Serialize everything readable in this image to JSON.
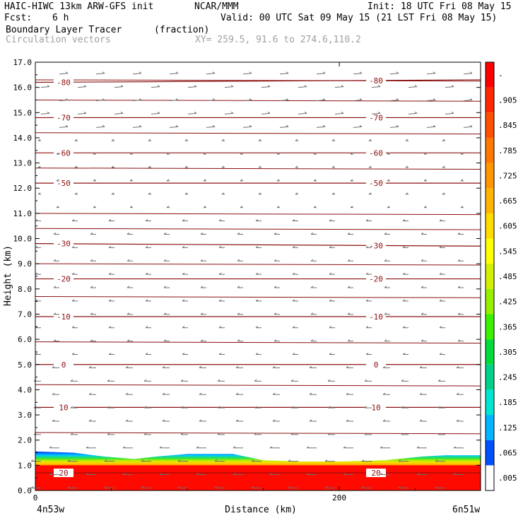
{
  "header": {
    "model": "HAIC-HIWC 13km ARW-GFS init",
    "org": "NCAR/MMM",
    "init": "Init: 18 UTC Fri 08 May 15",
    "fcst_label": "Fcst:",
    "fcst_value": "6 h",
    "valid": "Valid: 00 UTC Sat 09 May 15 (21 LST Fri 08 May 15)",
    "field1": "Boundary Layer Tracer",
    "field1_units": "(fraction)",
    "field2": "Circulation vectors",
    "xy": "XY= 259.5, 91.6 to 274.6,110.2"
  },
  "chart_data": {
    "type": "heatmap",
    "title": "",
    "xlabel": "Distance (km)",
    "ylabel": "Height (km)",
    "xlim": [
      0,
      293
    ],
    "ylim": [
      0,
      17
    ],
    "x_ticks": [
      0,
      200
    ],
    "y_ticks": [
      "0.0",
      "1.0",
      "2.0",
      "3.0",
      "4.0",
      "5.0",
      "6.0",
      "7.0",
      "8.0",
      "9.0",
      "10.0",
      "11.0",
      "12.0",
      "13.0",
      "14.0",
      "15.0",
      "16.0",
      "17.0"
    ],
    "x_endpoints": {
      "left": "4n53w",
      "right": "6n51w"
    },
    "colorbar": {
      "labels": [
        ".005",
        ".065",
        ".125",
        ".185",
        ".245",
        ".305",
        ".365",
        ".425",
        ".485",
        ".545",
        ".605",
        ".665",
        ".725",
        ".785",
        ".845",
        ".905",
        "-"
      ],
      "colors": [
        "#ffffff",
        "#0050ff",
        "#00b4ff",
        "#00e6d2",
        "#00d28c",
        "#00dc3c",
        "#3cf000",
        "#96f000",
        "#d2f000",
        "#ffff00",
        "#ffdc00",
        "#ffb400",
        "#ff9600",
        "#ff7800",
        "#ff5000",
        "#ff2800",
        "#ff0000"
      ]
    },
    "tracer_top_km": {
      "x": [
        0,
        25,
        45,
        65,
        80,
        100,
        130,
        150,
        175,
        200,
        230,
        255,
        270,
        293
      ],
      "y": [
        1.55,
        1.5,
        1.35,
        1.25,
        1.35,
        1.45,
        1.45,
        1.2,
        1.15,
        1.15,
        1.2,
        1.35,
        1.4,
        1.4
      ]
    },
    "isotherms": [
      {
        "label": "-80",
        "height": [
          16.2,
          16.3
        ]
      },
      {
        "label": "-70",
        "height": [
          14.8,
          14.8
        ]
      },
      {
        "label": "-60",
        "height": [
          13.4,
          13.4
        ]
      },
      {
        "label": "-50",
        "height": [
          12.2,
          12.2
        ]
      },
      {
        "label": "-30",
        "height": [
          9.8,
          9.7
        ]
      },
      {
        "label": "-20",
        "height": [
          8.4,
          8.4
        ]
      },
      {
        "label": "-10",
        "height": [
          6.9,
          6.9
        ]
      },
      {
        "label": "0",
        "height": [
          5.0,
          5.0
        ]
      },
      {
        "label": "10",
        "height": [
          3.3,
          3.3
        ]
      },
      {
        "label": "20",
        "height": [
          0.7,
          0.7
        ]
      }
    ],
    "unlabeled_isotherm_heights": [
      2.3,
      4.2,
      5.9,
      7.7,
      9.0,
      10.4,
      11.0,
      12.8,
      14.2,
      15.5,
      16.3
    ],
    "colors": {
      "isotherm": "#8b1010",
      "vector": "#6e6e6e",
      "axis": "#000000"
    }
  }
}
